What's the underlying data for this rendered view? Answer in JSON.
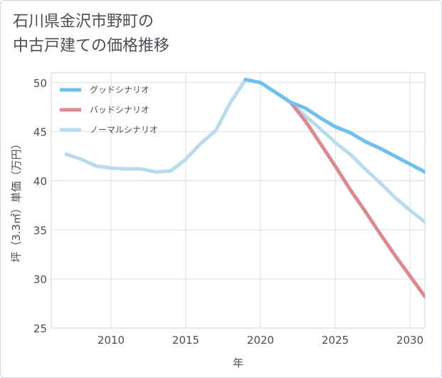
{
  "title": {
    "line1": "石川県金沢市野町の",
    "line2": "中古戸建ての価格推移"
  },
  "chart_data": {
    "type": "line",
    "xlabel": "年",
    "ylabel": "坪（3.3㎡）単価（万円）",
    "xlim": [
      2006,
      2031
    ],
    "ylim": [
      25,
      51
    ],
    "xticks": [
      2010,
      2015,
      2020,
      2025,
      2030
    ],
    "yticks": [
      25,
      30,
      35,
      40,
      45,
      50
    ],
    "grid": true,
    "legend_position": "top-left",
    "series": [
      {
        "name": "ノーマルシナリオ",
        "color": "#b9dcec",
        "x": [
          2007,
          2008,
          2009,
          2010,
          2011,
          2012,
          2013,
          2014,
          2015,
          2016,
          2017,
          2018,
          2019,
          2020,
          2021,
          2022,
          2023,
          2024,
          2025,
          2026,
          2027,
          2028,
          2029,
          2030,
          2031
        ],
        "values": [
          42.7,
          42.2,
          41.5,
          41.3,
          41.2,
          41.2,
          40.9,
          41.0,
          42.2,
          43.8,
          45.1,
          48.0,
          50.3,
          50.0,
          49.0,
          48.0,
          46.6,
          45.3,
          43.9,
          42.7,
          41.2,
          39.8,
          38.3,
          37.0,
          35.8
        ]
      },
      {
        "name": "バッドシナリオ",
        "color": "#dc8a92",
        "x": [
          2022,
          2023,
          2024,
          2025,
          2026,
          2027,
          2028,
          2029,
          2030,
          2031
        ],
        "values": [
          48.0,
          46.1,
          43.8,
          41.5,
          39.1,
          36.9,
          34.6,
          32.4,
          30.3,
          28.2
        ]
      },
      {
        "name": "グッドシナリオ",
        "color": "#6fbfef",
        "x": [
          2019,
          2020,
          2021,
          2022,
          2023,
          2024,
          2025,
          2026,
          2027,
          2028,
          2029,
          2030,
          2031
        ],
        "values": [
          50.3,
          50.0,
          49.0,
          48.0,
          47.4,
          46.4,
          45.5,
          44.9,
          44.0,
          43.3,
          42.5,
          41.7,
          40.9
        ]
      }
    ],
    "legend": [
      "グッドシナリオ",
      "バッドシナリオ",
      "ノーマルシナリオ"
    ]
  }
}
